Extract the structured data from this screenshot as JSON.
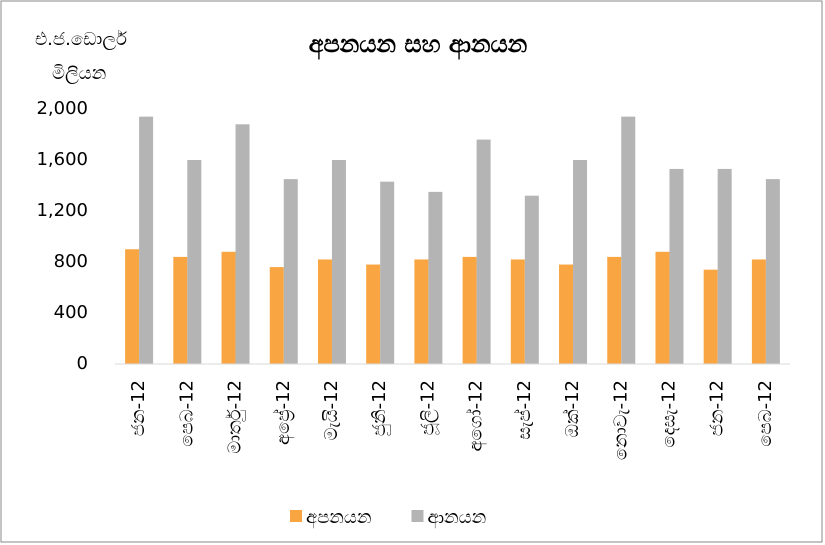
{
  "chart_data": {
    "type": "bar",
    "title": "අපනයන සහ ආනයන",
    "y_label": [
      "එ.ජ.ඩොලර්",
      "මිලියන"
    ],
    "categories": [
      "ජන-12",
      "පෙබ-12",
      "මාර්තු-12",
      "අප්‍රේ-12",
      "මැයි-12",
      "ජුනි-12",
      "ජූලි-12",
      "අගෝ-12",
      "සැප්-12",
      "ඔක්-12",
      "නොවැ-12",
      "දෙසැ-12",
      "ජන-12",
      "පෙබ-12"
    ],
    "series": [
      {
        "name": "අපනයන",
        "color": "#f9a642",
        "values": [
          900,
          840,
          880,
          760,
          820,
          780,
          820,
          840,
          820,
          780,
          840,
          880,
          740,
          820
        ]
      },
      {
        "name": "ආනයන",
        "color": "#b4b4b4",
        "values": [
          1940,
          1600,
          1880,
          1450,
          1600,
          1430,
          1350,
          1760,
          1320,
          1600,
          1940,
          1530,
          1530,
          1450
        ]
      }
    ],
    "ylim": [
      0,
      2000
    ],
    "yticks": [
      0,
      400,
      800,
      {
        "value": 1200,
        "label": "1,200"
      },
      {
        "value": 1600,
        "label": "1,600"
      },
      {
        "value": 2000,
        "label": "2,000"
      }
    ],
    "grid": false,
    "legend": "bottom"
  }
}
